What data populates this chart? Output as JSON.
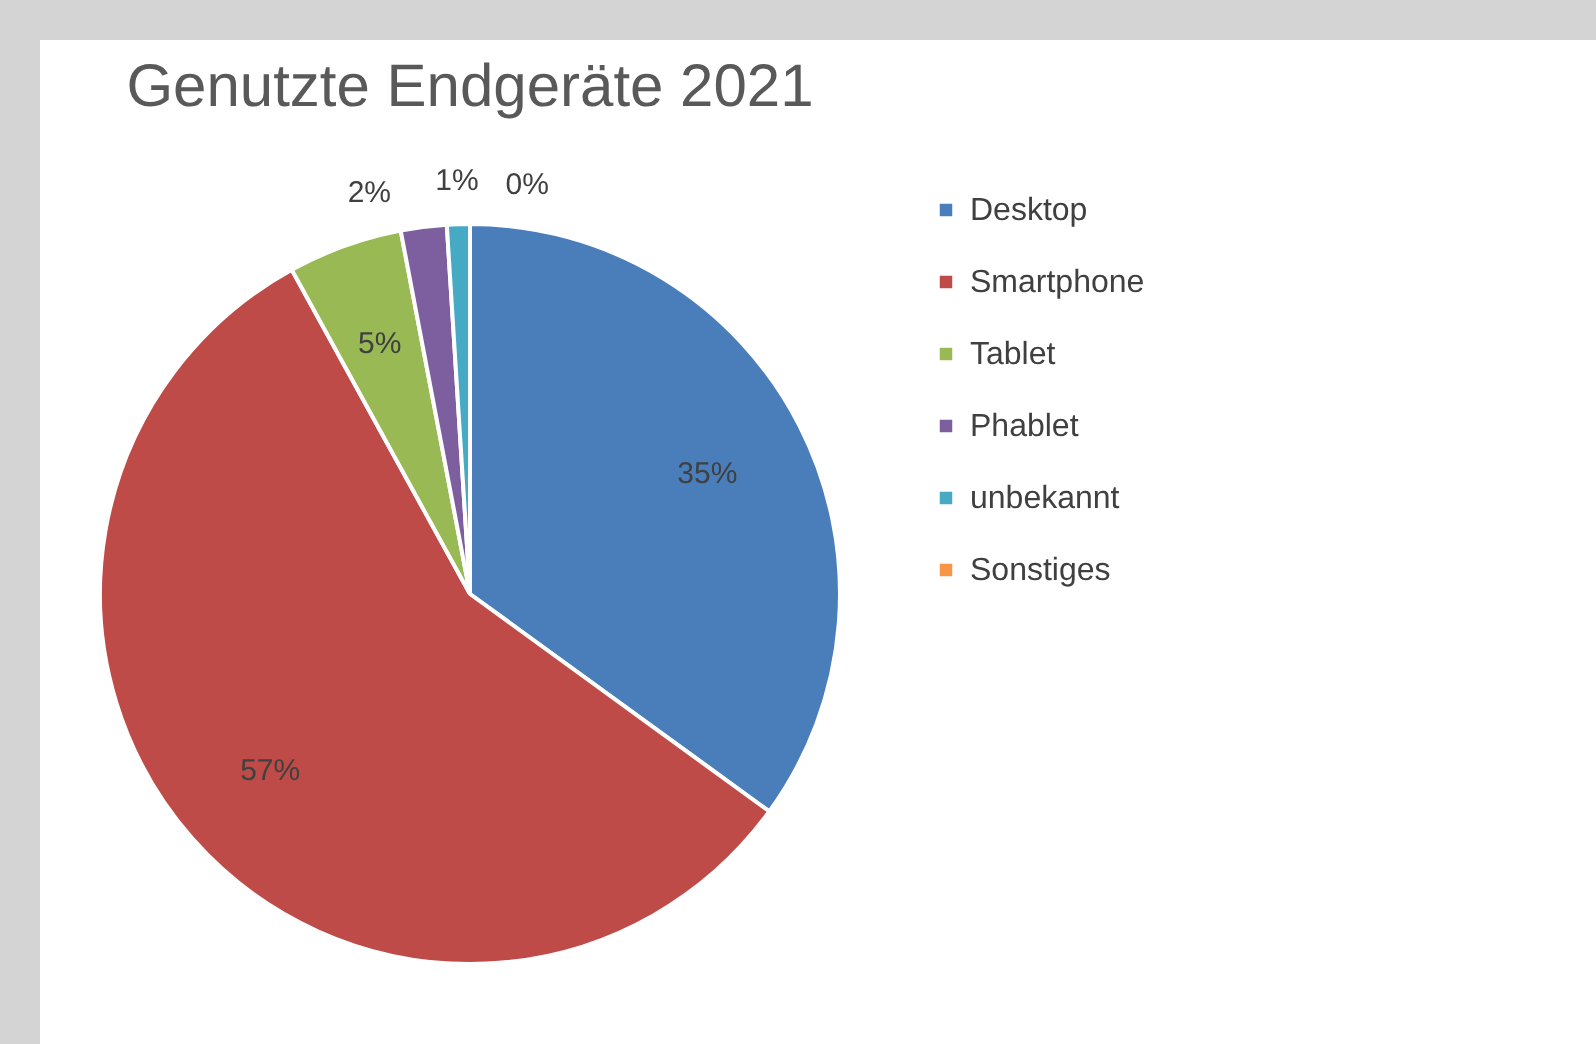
{
  "chart_data": {
    "type": "pie",
    "title": "Genutzte Endgeräte 2021",
    "categories": [
      "Desktop",
      "Smartphone",
      "Tablet",
      "Phablet",
      "unbekannt",
      "Sonstiges"
    ],
    "values": [
      35,
      57,
      5,
      2,
      1,
      0
    ],
    "colors": [
      "#4a7ebb",
      "#be4b48",
      "#98b954",
      "#7d5fa0",
      "#46aac5",
      "#f79646"
    ],
    "value_labels": [
      "35%",
      "57%",
      "5%",
      "2%",
      "1%",
      "0%"
    ],
    "legend": "right"
  }
}
